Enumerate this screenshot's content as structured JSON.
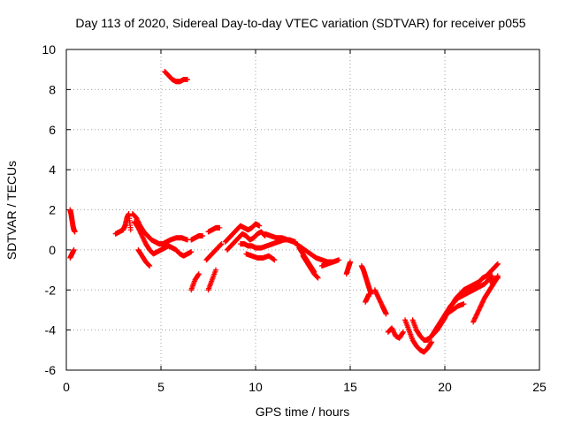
{
  "chart_data": {
    "type": "scatter",
    "title": "Day 113 of 2020, Sidereal Day-to-day VTEC variation (SDTVAR) for receiver p055",
    "xlabel": "GPS time / hours",
    "ylabel": "SDTVAR / TECUs",
    "xlim": [
      0,
      25
    ],
    "ylim": [
      -6,
      10
    ],
    "xticks": [
      "0",
      "5",
      "10",
      "15",
      "20",
      "25"
    ],
    "yticks": [
      "-6",
      "-4",
      "-2",
      "0",
      "2",
      "4",
      "6",
      "8",
      "10"
    ],
    "grid": true,
    "marker": "+",
    "color": "#ff0000",
    "series": [
      {
        "name": "p055",
        "segments": [
          {
            "x": [
              0.2,
              0.25,
              0.3,
              0.35,
              0.4,
              0.45
            ],
            "y": [
              2.0,
              1.8,
              1.5,
              1.2,
              1.0,
              0.9
            ]
          },
          {
            "x": [
              0.2,
              0.3,
              0.4
            ],
            "y": [
              -0.4,
              -0.2,
              0.0
            ]
          },
          {
            "x": [
              2.6,
              2.8,
              3.0,
              3.1,
              3.2,
              3.3,
              3.4
            ],
            "y": [
              0.8,
              0.9,
              1.0,
              1.2,
              1.6,
              1.8,
              1.0
            ]
          },
          {
            "x": [
              3.5,
              3.7,
              3.9,
              4.1,
              4.3,
              4.5,
              4.7,
              4.9,
              5.1,
              5.3,
              5.5,
              5.8,
              6.1,
              6.4
            ],
            "y": [
              1.8,
              1.6,
              1.2,
              0.9,
              0.7,
              0.5,
              0.4,
              0.3,
              0.3,
              0.4,
              0.5,
              0.6,
              0.6,
              0.5
            ]
          },
          {
            "x": [
              3.6,
              3.8,
              4.0,
              4.2,
              4.4,
              4.6,
              4.8,
              5.0,
              5.2,
              5.4,
              5.6,
              5.8,
              6.0,
              6.2,
              6.4,
              6.6
            ],
            "y": [
              1.4,
              1.1,
              0.7,
              0.3,
              0.0,
              -0.2,
              -0.1,
              0.0,
              0.1,
              0.2,
              0.1,
              0.0,
              -0.2,
              -0.3,
              -0.2,
              -0.1
            ]
          },
          {
            "x": [
              3.8,
              4.0,
              4.2,
              4.4
            ],
            "y": [
              0.0,
              -0.3,
              -0.6,
              -0.8
            ]
          },
          {
            "x": [
              5.2,
              5.4,
              5.6,
              5.8,
              6.0,
              6.2,
              6.4
            ],
            "y": [
              8.9,
              8.7,
              8.5,
              8.4,
              8.4,
              8.5,
              8.5
            ]
          },
          {
            "x": [
              6.6,
              6.8,
              7.0,
              7.2
            ],
            "y": [
              0.5,
              0.6,
              0.7,
              0.7
            ]
          },
          {
            "x": [
              6.6,
              6.8,
              7.0
            ],
            "y": [
              -2.0,
              -1.5,
              -1.2
            ]
          },
          {
            "x": [
              7.5,
              7.7,
              7.9,
              8.1
            ],
            "y": [
              0.9,
              1.0,
              1.1,
              1.1
            ]
          },
          {
            "x": [
              7.4,
              7.6,
              7.8,
              8.0,
              8.2
            ],
            "y": [
              -0.5,
              -0.3,
              -0.1,
              0.1,
              0.3
            ]
          },
          {
            "x": [
              7.5,
              7.7,
              7.9
            ],
            "y": [
              -2.0,
              -1.5,
              -1.0
            ]
          },
          {
            "x": [
              8.4,
              8.6,
              8.8,
              9.0,
              9.2,
              9.4,
              9.6,
              9.8,
              10.0,
              10.2
            ],
            "y": [
              0.4,
              0.6,
              0.8,
              1.0,
              1.2,
              1.1,
              1.0,
              1.1,
              1.3,
              1.2
            ]
          },
          {
            "x": [
              8.5,
              8.7,
              8.9,
              9.1,
              9.3,
              9.5,
              9.7,
              9.9,
              10.1,
              10.3,
              10.5
            ],
            "y": [
              0.0,
              0.2,
              0.4,
              0.6,
              0.8,
              0.7,
              0.5,
              0.6,
              0.8,
              0.9,
              0.7
            ]
          },
          {
            "x": [
              9.2,
              9.4,
              9.6,
              9.8,
              10.0,
              10.3,
              10.6,
              10.9,
              11.2,
              11.5,
              11.8,
              12.1
            ],
            "y": [
              0.3,
              0.3,
              0.2,
              0.2,
              0.1,
              0.1,
              0.2,
              0.3,
              0.4,
              0.5,
              0.5,
              0.4
            ]
          },
          {
            "x": [
              9.5,
              9.8,
              10.1,
              10.4,
              10.7,
              11.0
            ],
            "y": [
              -0.2,
              -0.3,
              -0.4,
              -0.4,
              -0.3,
              -0.5
            ]
          },
          {
            "x": [
              10.5,
              10.8,
              11.1,
              11.4,
              11.7,
              12.0,
              12.3,
              12.6,
              12.9,
              13.2,
              13.5,
              13.8,
              14.1
            ],
            "y": [
              0.8,
              0.7,
              0.6,
              0.6,
              0.5,
              0.4,
              0.2,
              0.0,
              -0.2,
              -0.4,
              -0.5,
              -0.6,
              -0.6
            ]
          },
          {
            "x": [
              12.3,
              12.5,
              12.7,
              12.9,
              13.1
            ],
            "y": [
              0.1,
              -0.2,
              -0.5,
              -0.8,
              -1.1
            ]
          },
          {
            "x": [
              12.5,
              12.7,
              12.9,
              13.1,
              13.3
            ],
            "y": [
              -0.3,
              -0.6,
              -0.9,
              -1.2,
              -1.4
            ]
          },
          {
            "x": [
              13.5,
              13.8,
              14.1,
              14.4
            ],
            "y": [
              -0.8,
              -0.7,
              -0.6,
              -0.5
            ]
          },
          {
            "x": [
              14.8,
              14.9,
              15.0
            ],
            "y": [
              -1.2,
              -0.9,
              -0.6
            ]
          },
          {
            "x": [
              15.6,
              15.7,
              15.8,
              15.9,
              16.0,
              16.1
            ],
            "y": [
              -0.8,
              -1.0,
              -1.3,
              -1.6,
              -1.9,
              -2.2
            ]
          },
          {
            "x": [
              15.8,
              15.9,
              16.0
            ],
            "y": [
              -2.6,
              -2.4,
              -2.2
            ]
          },
          {
            "x": [
              16.3,
              16.5,
              16.7,
              16.8,
              16.9
            ],
            "y": [
              -2.0,
              -2.4,
              -2.8,
              -3.0,
              -3.2
            ]
          },
          {
            "x": [
              17.0,
              17.2,
              17.4,
              17.6,
              17.8
            ],
            "y": [
              -4.1,
              -3.9,
              -4.3,
              -4.4,
              -4.1
            ]
          },
          {
            "x": [
              17.9,
              18.1,
              18.3,
              18.5,
              18.7,
              18.9,
              19.1,
              19.3
            ],
            "y": [
              -3.5,
              -4.0,
              -4.5,
              -4.8,
              -5.0,
              -5.1,
              -4.9,
              -4.6
            ]
          },
          {
            "x": [
              18.3,
              18.5,
              18.7,
              18.9,
              19.1,
              19.3,
              19.5,
              19.7,
              19.9,
              20.1,
              20.3,
              20.5,
              20.7,
              20.9,
              21.1,
              21.3,
              21.5,
              21.7,
              21.9,
              22.1,
              22.3,
              22.5
            ],
            "y": [
              -3.5,
              -4.0,
              -4.3,
              -4.5,
              -4.5,
              -4.3,
              -4.0,
              -3.7,
              -3.4,
              -3.1,
              -2.8,
              -2.6,
              -2.4,
              -2.3,
              -2.2,
              -2.1,
              -2.0,
              -1.9,
              -1.8,
              -1.7,
              -1.5,
              -1.3
            ]
          },
          {
            "x": [
              19.0,
              19.2,
              19.4,
              19.6,
              19.8,
              20.0,
              20.2,
              20.4,
              20.6,
              20.8,
              21.0,
              21.2,
              21.4,
              21.6,
              21.8,
              22.0,
              22.2,
              22.4,
              22.6,
              22.8
            ],
            "y": [
              -4.5,
              -4.4,
              -4.2,
              -4.0,
              -3.7,
              -3.4,
              -3.0,
              -2.7,
              -2.4,
              -2.2,
              -2.0,
              -1.9,
              -1.8,
              -1.7,
              -1.6,
              -1.4,
              -1.3,
              -1.1,
              -0.9,
              -0.7
            ]
          },
          {
            "x": [
              19.5,
              19.8,
              20.1,
              20.4,
              20.7,
              21.0
            ],
            "y": [
              -4.0,
              -3.6,
              -3.2,
              -3.0,
              -2.8,
              -2.7
            ]
          },
          {
            "x": [
              21.5,
              21.7,
              21.9,
              22.1,
              22.3,
              22.5,
              22.7,
              22.8
            ],
            "y": [
              -3.6,
              -3.2,
              -2.8,
              -2.4,
              -2.1,
              -1.8,
              -1.5,
              -1.3
            ]
          },
          {
            "x": [
              22.4,
              22.6,
              22.8
            ],
            "y": [
              -1.6,
              -1.5,
              -1.4
            ]
          }
        ]
      }
    ]
  }
}
